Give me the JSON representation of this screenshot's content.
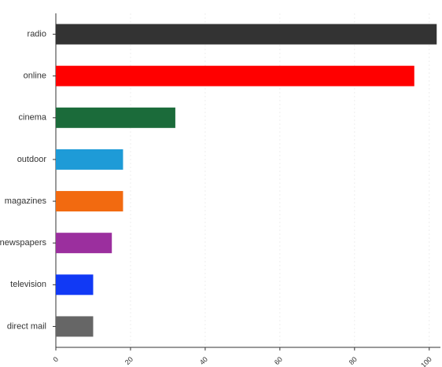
{
  "chart_data": {
    "type": "hbar",
    "categories": [
      "radio",
      "online",
      "cinema",
      "outdoor",
      "magazines",
      "newspapers",
      "television",
      "direct mail"
    ],
    "values": [
      102,
      96,
      32,
      18,
      18,
      15,
      10,
      10
    ],
    "colors": [
      "#333333",
      "#ff0000",
      "#1b6b3a",
      "#1e9bd7",
      "#f26a10",
      "#9b2f9e",
      "#1139f5",
      "#666666"
    ],
    "xlim": [
      0,
      103
    ],
    "xticks": [
      0,
      20,
      40,
      60,
      80,
      100
    ],
    "grid": true
  }
}
